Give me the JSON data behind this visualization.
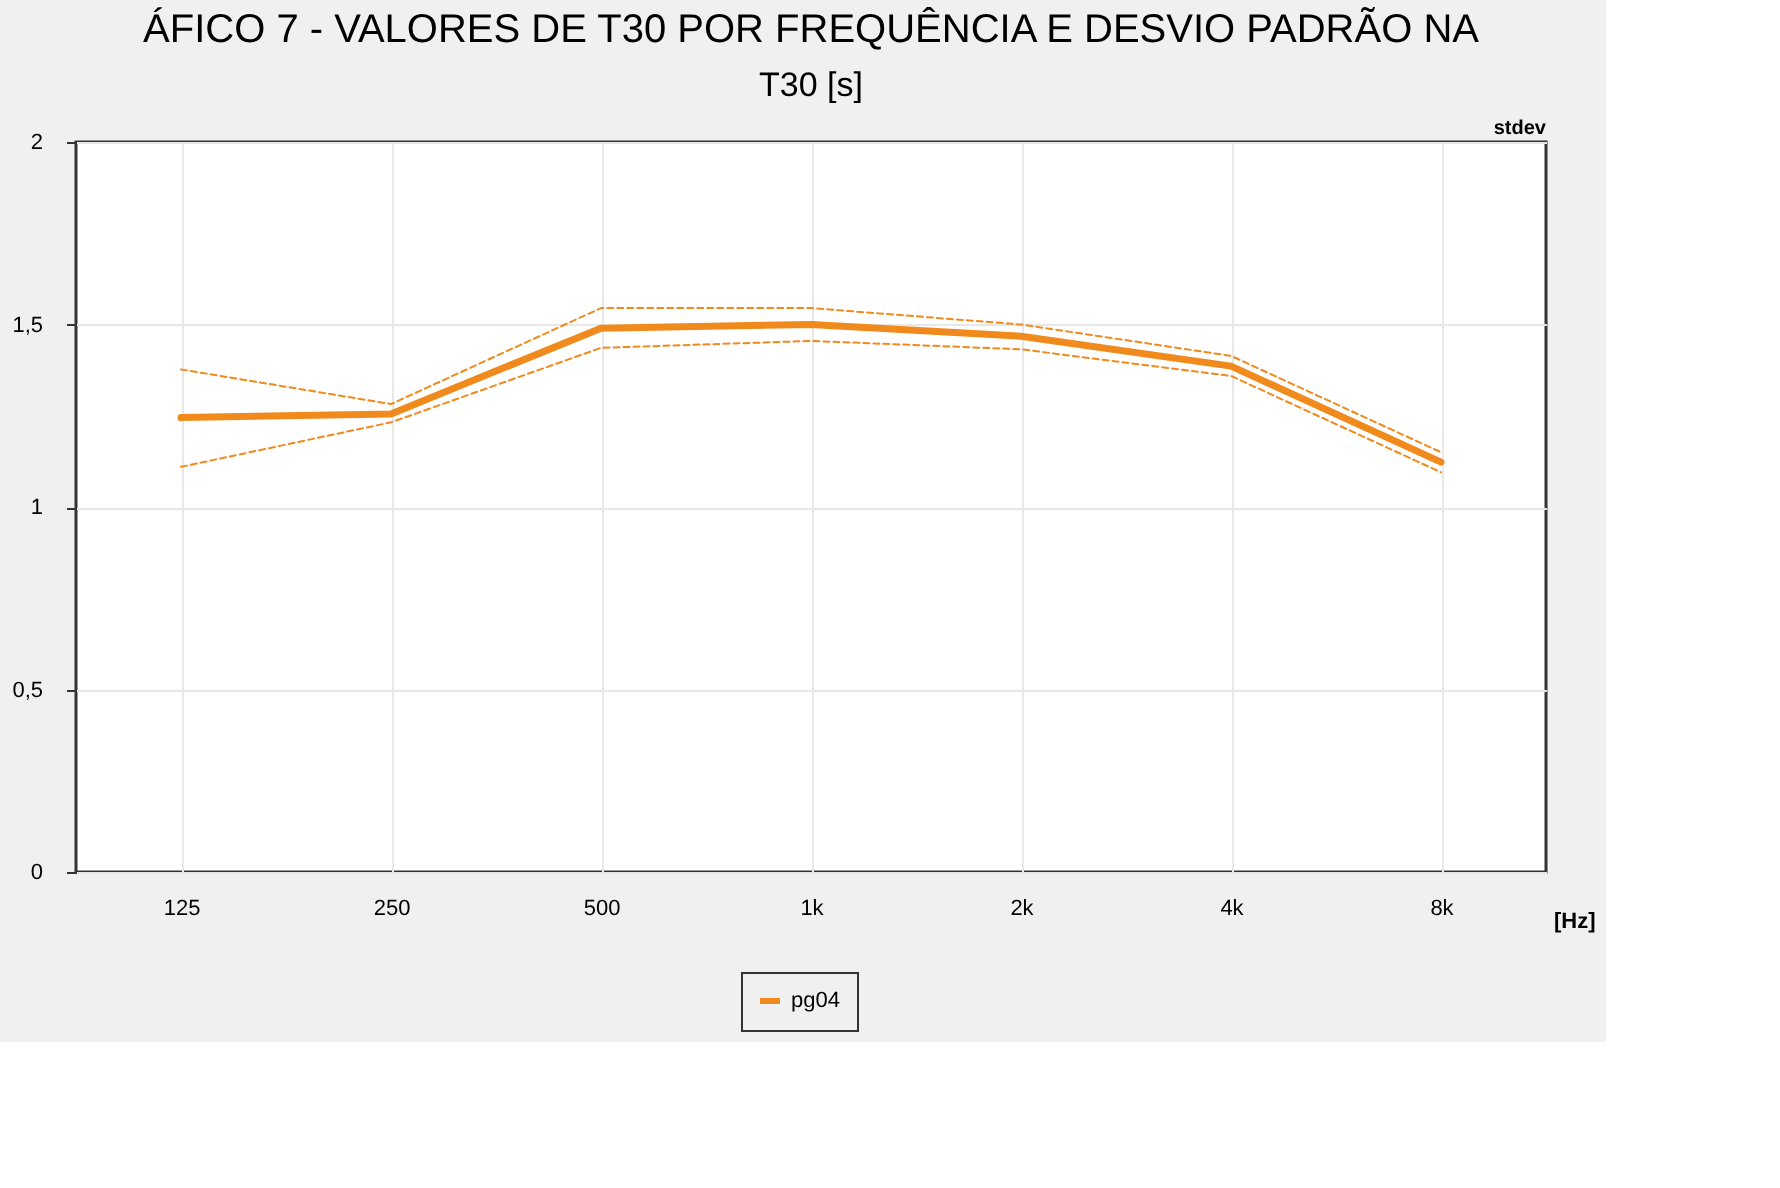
{
  "chart_data": {
    "type": "line",
    "title": "ÁFICO 7 - VALORES DE T30 POR FREQUÊNCIA E DESVIO PADRÃO NA",
    "subtitle": "T30 [s]",
    "xlabel": "[Hz]",
    "annotations": [
      "stdev"
    ],
    "categories": [
      "125",
      "250",
      "500",
      "1k",
      "2k",
      "4k",
      "8k"
    ],
    "series": [
      {
        "name": "pg04",
        "color": "#f08a1c",
        "values": [
          1.245,
          1.255,
          1.49,
          1.5,
          1.468,
          1.386,
          1.123
        ]
      },
      {
        "color": "#f08a1c",
        "line_style": "dashed",
        "values": [
          1.377,
          1.282,
          1.545,
          1.545,
          1.5,
          1.414,
          1.15
        ]
      },
      {
        "color": "#f08a1c",
        "line_style": "dashed",
        "values": [
          1.11,
          1.232,
          1.436,
          1.455,
          1.432,
          1.359,
          1.095
        ]
      }
    ],
    "ylim": [
      0,
      2
    ],
    "yticks": [
      0,
      {
        "value": 0.5,
        "label": "0,5"
      },
      1,
      {
        "value": 1.5,
        "label": "1,5"
      },
      2
    ],
    "grid": true,
    "legend": "bottom",
    "line_style": "solid",
    "marker": "none"
  }
}
